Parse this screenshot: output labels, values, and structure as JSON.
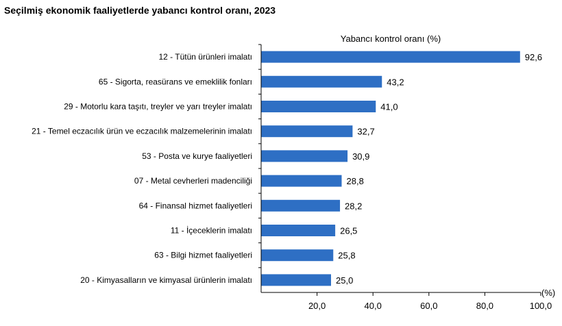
{
  "chart_data": {
    "type": "bar",
    "orientation": "horizontal",
    "title": "Seçilmiş ekonomik faaliyetlerde yabancı kontrol oranı, 2023",
    "series_label": "Yabancı kontrol oranı (%)",
    "unit_label": "(%)",
    "categories": [
      "12 - Tütün ürünleri imalatı",
      "65 - Sigorta, reasürans ve emeklilik fonları",
      "29 - Motorlu kara taşıtı, treyler ve yarı treyler imalatı",
      "21 - Temel eczacılık ürün ve eczacılık malzemelerinin imalatı",
      "53 - Posta ve kurye faaliyetleri",
      "07 - Metal cevherleri madenciliği",
      "64 - Finansal hizmet faaliyetleri",
      "11 - İçeceklerin imalatı",
      "63 - Bilgi hizmet faaliyetleri",
      "20 - Kimyasalların ve kimyasal ürünlerin imalatı"
    ],
    "values": [
      92.6,
      43.2,
      41.0,
      32.7,
      30.9,
      28.8,
      28.2,
      26.5,
      25.8,
      25.0
    ],
    "value_labels": [
      "92,6",
      "43,2",
      "41,0",
      "32,7",
      "30,9",
      "28,8",
      "28,2",
      "26,5",
      "25,8",
      "25,0"
    ],
    "xlim": [
      0,
      100
    ],
    "xticks": [
      20,
      40,
      60,
      80,
      100
    ],
    "xtick_labels": [
      "20,0",
      "40,0",
      "60,0",
      "80,0",
      "100,0"
    ],
    "bar_color": "#2E6FC4",
    "grid": false,
    "legend": "none"
  }
}
